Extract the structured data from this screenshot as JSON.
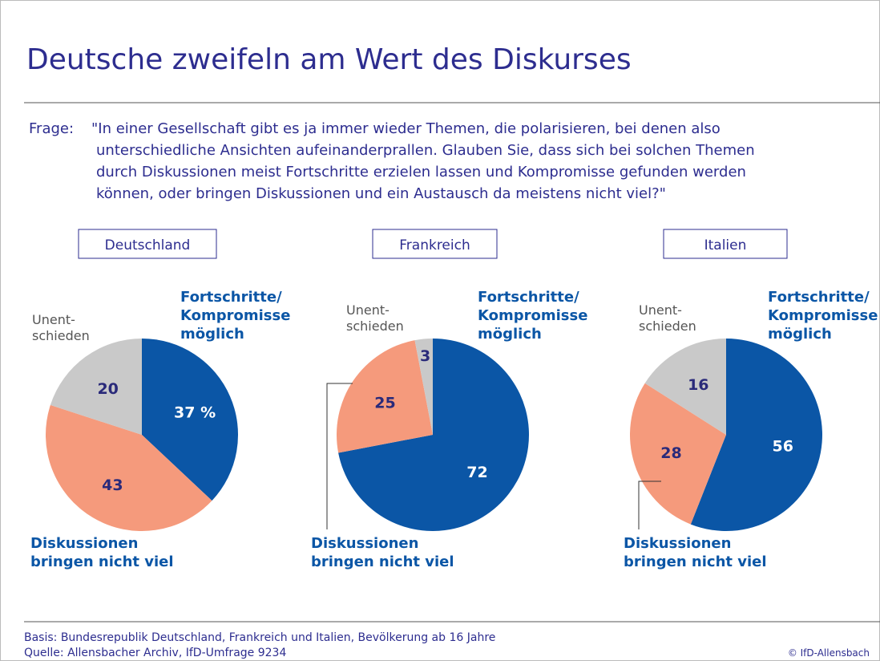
{
  "title": "Deutsche zweifeln am Wert des Diskurses",
  "question_label": "Frage:",
  "question_lines": [
    "\"In einer Gesellschaft gibt es ja immer wieder Themen, die polarisieren, bei denen also",
    "unterschiedliche Ansichten aufeinanderprallen. Glauben Sie, dass sich bei solchen Themen",
    "durch Diskussionen meist Fortschritte erzielen lassen und Kompromisse gefunden werden",
    "können, oder bringen Diskussionen und ein Austausch da meistens nicht viel?\""
  ],
  "footnotes": [
    "Basis: Bundesrepublik Deutschland, Frankreich und Italien, Bevölkerung ab 16 Jahre",
    "Quelle: Allensbacher Archiv, IfD-Umfrage 9234"
  ],
  "copyright": "© IfD-Allensbach",
  "chart_data": [
    {
      "type": "pie",
      "title": "Deutschland",
      "categories": [
        "Fortschritte/\nKompromisse\nmöglich",
        "Diskussionen\nbringen nicht viel",
        "Unent-\nschieden"
      ],
      "values": [
        37,
        43,
        20
      ],
      "value_labels": [
        "37 %",
        "43",
        "20"
      ],
      "colors": [
        "#0b56a6",
        "#f59a7c",
        "#c9c9c9"
      ]
    },
    {
      "type": "pie",
      "title": "Frankreich",
      "categories": [
        "Fortschritte/\nKompromisse\nmöglich",
        "Diskussionen\nbringen nicht viel",
        "Unent-\nschieden"
      ],
      "values": [
        72,
        25,
        3
      ],
      "colors": [
        "#0b56a6",
        "#f59a7c",
        "#c9c9c9"
      ]
    },
    {
      "type": "pie",
      "title": "Italien",
      "categories": [
        "Fortschritte/\nKompromisse\nmöglich",
        "Diskussionen\nbringen nicht viel",
        "Unent-\nschieden"
      ],
      "values": [
        56,
        28,
        16
      ],
      "colors": [
        "#0b56a6",
        "#f59a7c",
        "#c9c9c9"
      ]
    }
  ]
}
